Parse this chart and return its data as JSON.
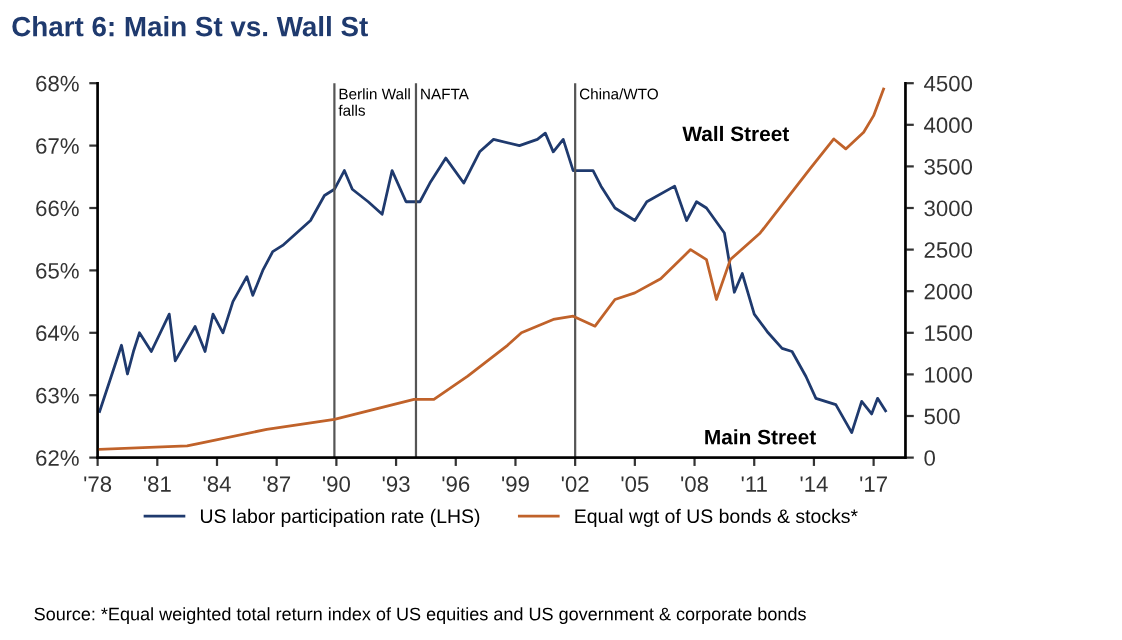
{
  "chart_data": {
    "type": "line",
    "title": "Chart 6: Main St vs. Wall St",
    "xlim": [
      1978,
      2018.6
    ],
    "xticks": [
      {
        "value": 1978,
        "label": "'78"
      },
      {
        "value": 1981,
        "label": "'81"
      },
      {
        "value": 1984,
        "label": "'84"
      },
      {
        "value": 1987,
        "label": "'87"
      },
      {
        "value": 1990,
        "label": "'90"
      },
      {
        "value": 1993,
        "label": "'93"
      },
      {
        "value": 1996,
        "label": "'96"
      },
      {
        "value": 1999,
        "label": "'99"
      },
      {
        "value": 2002,
        "label": "'02"
      },
      {
        "value": 2005,
        "label": "'05"
      },
      {
        "value": 2008,
        "label": "'08"
      },
      {
        "value": 2011,
        "label": "'11"
      },
      {
        "value": 2014,
        "label": "'14"
      },
      {
        "value": 2017,
        "label": "'17"
      }
    ],
    "ylim": [
      62,
      68
    ],
    "yticks": [
      {
        "value": 62,
        "label": "62%"
      },
      {
        "value": 63,
        "label": "63%"
      },
      {
        "value": 64,
        "label": "64%"
      },
      {
        "value": 65,
        "label": "65%"
      },
      {
        "value": 66,
        "label": "66%"
      },
      {
        "value": 67,
        "label": "67%"
      },
      {
        "value": 68,
        "label": "68%"
      }
    ],
    "y2lim": [
      0,
      4500
    ],
    "y2ticks": [
      0,
      500,
      1000,
      1500,
      2000,
      2500,
      3000,
      3500,
      4000,
      4500
    ],
    "grid": false,
    "legend": "bottom",
    "marker": "none",
    "line_style": "solid",
    "series": [
      {
        "name": "US labor participation rate (LHS)",
        "color": "#1f3a6e",
        "axis": "y",
        "x": [
          1978.1,
          1978.6,
          1979.2,
          1979.5,
          1979.8,
          1980.1,
          1980.7,
          1981.6,
          1981.9,
          1982.9,
          1983.4,
          1983.8,
          1984.3,
          1984.8,
          1985.5,
          1985.8,
          1986.3,
          1986.8,
          1987.3,
          1988.0,
          1988.7,
          1989.4,
          1989.9,
          1990.4,
          1990.8,
          1991.6,
          1992.3,
          1992.8,
          1993.5,
          1994.2,
          1994.7,
          1995.5,
          1996.4,
          1997.2,
          1997.9,
          1999.2,
          2000.1,
          2000.5,
          2000.9,
          2001.4,
          2001.9,
          2002.9,
          2003.3,
          2004.0,
          2005.0,
          2005.6,
          2007.0,
          2007.6,
          2008.1,
          2008.6,
          2009.5,
          2010.0,
          2010.4,
          2011.0,
          2011.7,
          2012.4,
          2012.9,
          2013.6,
          2014.1,
          2015.1,
          2015.9,
          2016.4,
          2016.9,
          2017.2,
          2017.6
        ],
        "values": [
          62.74,
          63.22,
          63.8,
          63.34,
          63.7,
          64.0,
          63.7,
          64.3,
          63.55,
          64.1,
          63.7,
          64.3,
          64.0,
          64.5,
          64.9,
          64.6,
          65.0,
          65.3,
          65.4,
          65.6,
          65.8,
          66.2,
          66.3,
          66.6,
          66.3,
          66.1,
          65.9,
          66.6,
          66.1,
          66.1,
          66.4,
          66.8,
          66.4,
          66.9,
          67.1,
          67.0,
          67.1,
          67.2,
          66.9,
          67.1,
          66.6,
          66.6,
          66.35,
          66.0,
          65.8,
          66.1,
          66.35,
          65.8,
          66.1,
          66.0,
          65.6,
          64.65,
          64.95,
          64.3,
          64.0,
          63.75,
          63.7,
          63.3,
          62.95,
          62.85,
          62.4,
          62.9,
          62.7,
          62.95,
          62.75
        ]
      },
      {
        "name": "Equal wgt of US bonds & stocks*",
        "color": "#c0622a",
        "axis": "y2",
        "x": [
          1978.1,
          1982.5,
          1983.3,
          1986.5,
          1989.9,
          1993.9,
          1994.9,
          1996.6,
          1998.6,
          1999.3,
          2000.9,
          2001.9,
          2003.0,
          2004.0,
          2005.0,
          2006.3,
          2007.8,
          2008.6,
          2009.1,
          2009.8,
          2011.3,
          2012.6,
          2013.8,
          2015.0,
          2015.6,
          2016.5,
          2017.0,
          2017.5
        ],
        "values": [
          100,
          140,
          180,
          340,
          460,
          700,
          700,
          980,
          1350,
          1500,
          1660,
          1700,
          1580,
          1900,
          1980,
          2150,
          2500,
          2380,
          1900,
          2380,
          2700,
          3100,
          3470,
          3830,
          3710,
          3910,
          4110,
          4430
        ]
      }
    ],
    "ref_lines": [
      {
        "axis": "x",
        "value": 1989.9,
        "label": "Berlin Wall\nfalls",
        "color": "#555555"
      },
      {
        "axis": "x",
        "value": 1994.0,
        "label": "NAFTA",
        "color": "#555555"
      },
      {
        "axis": "x",
        "value": 2002.0,
        "label": "China/WTO",
        "color": "#555555"
      }
    ],
    "annotations": [
      "Wall Street",
      "Main Street",
      "Source: *Equal weighted total return index of US equities and US government & corporate bonds"
    ]
  }
}
